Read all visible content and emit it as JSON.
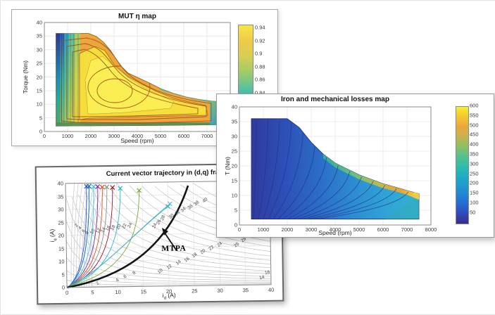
{
  "chart_data": [
    {
      "id": "eta_map",
      "type": "filled_contour",
      "title": "MUT η map",
      "xlabel": "Speed (rpm)",
      "ylabel": "Torque (Nm)",
      "xlim": [
        0,
        8000
      ],
      "ylim": [
        0,
        40
      ],
      "xticks": [
        "0",
        "1000",
        "2000",
        "3000",
        "4000",
        "5000",
        "6000",
        "7000"
      ],
      "yticks": [
        "0",
        "5",
        "10",
        "15",
        "20",
        "25",
        "30",
        "35",
        "40"
      ],
      "colorbar_ticks": [
        "0.94",
        "0.92",
        "0.9",
        "0.88",
        "0.86",
        "0.84"
      ],
      "efficiency_range": [
        0.84,
        0.94
      ],
      "map_domain": {
        "speed_rpm": [
          500,
          7400
        ],
        "torque_nm": [
          2,
          36
        ]
      },
      "peak_region": {
        "efficiency": 0.94,
        "speed_rpm": [
          2000,
          4500
        ],
        "torque_nm": [
          6,
          20
        ]
      },
      "grid": true,
      "colorbar_position": "right"
    },
    {
      "id": "losses_map",
      "type": "filled_contour",
      "title": "Iron and mechanical losses map",
      "xlabel": "Speed (rpm)",
      "ylabel": "T (Nm)",
      "xlim": [
        0,
        8000
      ],
      "ylim": [
        0,
        40
      ],
      "xticks": [
        "0",
        "1000",
        "2000",
        "3000",
        "4000",
        "5000",
        "6000",
        "7000",
        "8000"
      ],
      "yticks": [
        "0",
        "5",
        "10",
        "15",
        "20",
        "25",
        "30",
        "35",
        "40"
      ],
      "colorbar_ticks": [
        "600",
        "550",
        "500",
        "450",
        "400",
        "350",
        "300",
        "250",
        "200",
        "150",
        "100",
        "50"
      ],
      "loss_range_w": [
        0,
        600
      ],
      "map_domain": {
        "speed_rpm": [
          500,
          7500
        ],
        "torque_nm": [
          2,
          36
        ]
      },
      "max_loss_region": {
        "speed_rpm": 7500,
        "torque_nm": 10
      },
      "grid": true,
      "colorbar_position": "right"
    },
    {
      "id": "dq_trajectory",
      "type": "line_contour",
      "title": "Current vector trajectory in (d,q) frame",
      "xlabel": {
        "base": "i",
        "sub": "d",
        "rest": " (A)"
      },
      "ylabel": {
        "base": "i",
        "sub": "q",
        "rest": " (A)"
      },
      "xlim": [
        0,
        40
      ],
      "ylim": [
        0,
        40
      ],
      "xticks": [
        "0",
        "5",
        "10",
        "15",
        "20",
        "25",
        "30",
        "35",
        "40"
      ],
      "yticks": [
        "0",
        "5",
        "10",
        "15",
        "20",
        "25",
        "30",
        "35",
        "40"
      ],
      "annotation": "MTPA",
      "torque_levels": [
        2,
        4,
        6,
        8,
        10,
        12,
        14,
        16,
        18,
        20,
        22,
        24,
        26,
        28,
        30,
        32,
        34,
        36,
        38,
        40
      ],
      "mtpa_curve_points": [
        [
          0,
          0
        ],
        [
          5,
          2.5
        ],
        [
          10,
          6.5
        ],
        [
          15,
          12.3
        ],
        [
          20,
          22
        ],
        [
          24,
          38.5
        ]
      ],
      "trajectories": [
        {
          "color": "#2e4fd0",
          "top": [
            4.1,
            38.8
          ]
        },
        {
          "color": "#0072bd",
          "top": [
            4.6,
            38.8
          ]
        },
        {
          "color": "#4dbeee",
          "top": [
            5.5,
            38.6
          ]
        },
        {
          "color": "#7e2f8e",
          "top": [
            6.3,
            38.6
          ]
        },
        {
          "color": "#d95319",
          "top": [
            7.2,
            38.4
          ]
        },
        {
          "color": "#8c8c8c",
          "top": [
            8.1,
            38.4
          ]
        },
        {
          "color": "#a2142f",
          "top": [
            9.2,
            38.2
          ]
        },
        {
          "color": "#29b6c5",
          "top": [
            10.7,
            37.8
          ]
        },
        {
          "color": "#77ac30",
          "top": [
            14.4,
            36.9
          ]
        },
        {
          "color": "#4dbeee",
          "top": [
            20.4,
            31.6
          ],
          "arc": true
        },
        {
          "color": "#39b0a8",
          "top": [
            20.0,
            30.6
          ],
          "arc": true
        }
      ],
      "contour_labels": [
        {
          "t": "2",
          "x": 6.1,
          "y": 1.3,
          "r": -38
        },
        {
          "t": "4",
          "x": 9.9,
          "y": 2.4,
          "r": -38
        },
        {
          "t": "6",
          "x": 11.4,
          "y": 3.8,
          "r": -38
        },
        {
          "t": "8",
          "x": 13.3,
          "y": 5.1,
          "r": -38
        },
        {
          "t": "10",
          "x": 18.4,
          "y": 5.8,
          "r": -38
        },
        {
          "t": "12",
          "x": 20.1,
          "y": 7.3,
          "r": -38
        },
        {
          "t": "14",
          "x": 21.9,
          "y": 8.8,
          "r": -38
        },
        {
          "t": "16",
          "x": 23.6,
          "y": 10.1,
          "r": -38
        },
        {
          "t": "18",
          "x": 25.1,
          "y": 11.5,
          "r": -38
        },
        {
          "t": "20",
          "x": 26.7,
          "y": 12.9,
          "r": -38
        },
        {
          "t": "22",
          "x": 28.4,
          "y": 14.3,
          "r": -38
        },
        {
          "t": "24",
          "x": 30.0,
          "y": 15.6,
          "r": -38
        },
        {
          "t": "26",
          "x": 33.4,
          "y": 15.5,
          "r": -38
        },
        {
          "t": "28",
          "x": 34.8,
          "y": 17.4,
          "r": -38
        },
        {
          "t": "30",
          "x": 36.2,
          "y": 19.2,
          "r": -38
        },
        {
          "t": "14",
          "x": 38.2,
          "y": 2.6,
          "r": -12
        },
        {
          "t": "16",
          "x": 39.3,
          "y": 4.7,
          "r": -12
        },
        {
          "t": "30",
          "x": 20.7,
          "y": 26.8,
          "r": -40
        },
        {
          "t": "32",
          "x": 21.9,
          "y": 28.0,
          "r": -40
        },
        {
          "t": "34",
          "x": 23.1,
          "y": 29.2,
          "r": -40
        },
        {
          "t": "36",
          "x": 24.4,
          "y": 30.3,
          "r": -40
        },
        {
          "t": "38",
          "x": 25.7,
          "y": 31.5,
          "r": -40
        },
        {
          "t": "40",
          "x": 27.3,
          "y": 32.8,
          "r": -40
        },
        {
          "t": "24",
          "x": 17.4,
          "y": 23.2,
          "r": -65
        },
        {
          "t": "26",
          "x": 18.2,
          "y": 24.7,
          "r": -65
        },
        {
          "t": "28",
          "x": 19.0,
          "y": 26.2,
          "r": -65
        },
        {
          "t": "10",
          "x": 5.3,
          "y": 21.4,
          "r": -60
        },
        {
          "t": "12",
          "x": 6.3,
          "y": 21.7,
          "r": -60
        },
        {
          "t": "14",
          "x": 7.3,
          "y": 22.0,
          "r": -60
        },
        {
          "t": "16",
          "x": 8.3,
          "y": 22.3,
          "r": -60
        },
        {
          "t": "18",
          "x": 9.3,
          "y": 22.6,
          "r": -60
        },
        {
          "t": "20",
          "x": 10.3,
          "y": 22.9,
          "r": -60
        },
        {
          "t": "22",
          "x": 11.4,
          "y": 23.2,
          "r": -60
        },
        {
          "t": "24",
          "x": 12.5,
          "y": 23.6,
          "r": -60
        },
        {
          "t": "2",
          "x": 2.0,
          "y": 23.9,
          "r": -50
        },
        {
          "t": "4",
          "x": 2.8,
          "y": 22.7,
          "r": -50
        },
        {
          "t": "6",
          "x": 3.5,
          "y": 21.7,
          "r": -50
        },
        {
          "t": "8",
          "x": 4.2,
          "y": 20.9,
          "r": -50
        }
      ],
      "grid": true
    }
  ]
}
